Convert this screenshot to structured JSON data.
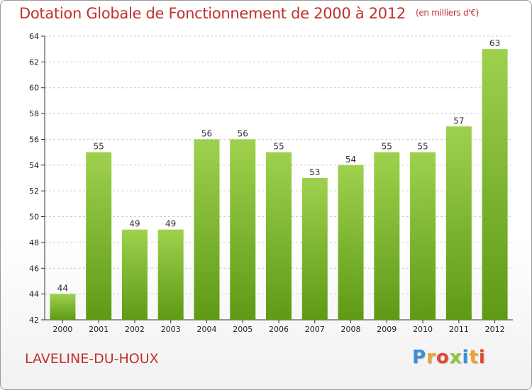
{
  "chart_data": {
    "type": "bar",
    "title": "Dotation Globale de Fonctionnement de 2000 à 2012",
    "unit": "(en milliers d'€)",
    "categories": [
      "2000",
      "2001",
      "2002",
      "2003",
      "2004",
      "2005",
      "2006",
      "2007",
      "2008",
      "2009",
      "2010",
      "2011",
      "2012"
    ],
    "values": [
      44,
      55,
      49,
      49,
      56,
      56,
      55,
      53,
      54,
      55,
      55,
      57,
      63
    ],
    "ylim": [
      42,
      64
    ],
    "yticks": [
      42,
      44,
      46,
      48,
      50,
      52,
      54,
      56,
      58,
      60,
      62,
      64
    ],
    "grid": true,
    "xlabel": "",
    "ylabel": "",
    "colors": {
      "bar_top": "#9ed14e",
      "bar_bottom": "#5e9a16",
      "grid": "#cccccc",
      "axis": "#333333"
    }
  },
  "footer": {
    "commune": "LAVELINE-DU-HOUX",
    "brand_letters": [
      {
        "char": "P",
        "color": "#3a8fd8"
      },
      {
        "char": "r",
        "color": "#f0a12a"
      },
      {
        "char": "o",
        "color": "#e8452c"
      },
      {
        "char": "x",
        "color": "#8dc63f"
      },
      {
        "char": "i",
        "color": "#3a8fd8"
      },
      {
        "char": "t",
        "color": "#f0a12a"
      },
      {
        "char": "i",
        "color": "#e8452c"
      }
    ]
  }
}
